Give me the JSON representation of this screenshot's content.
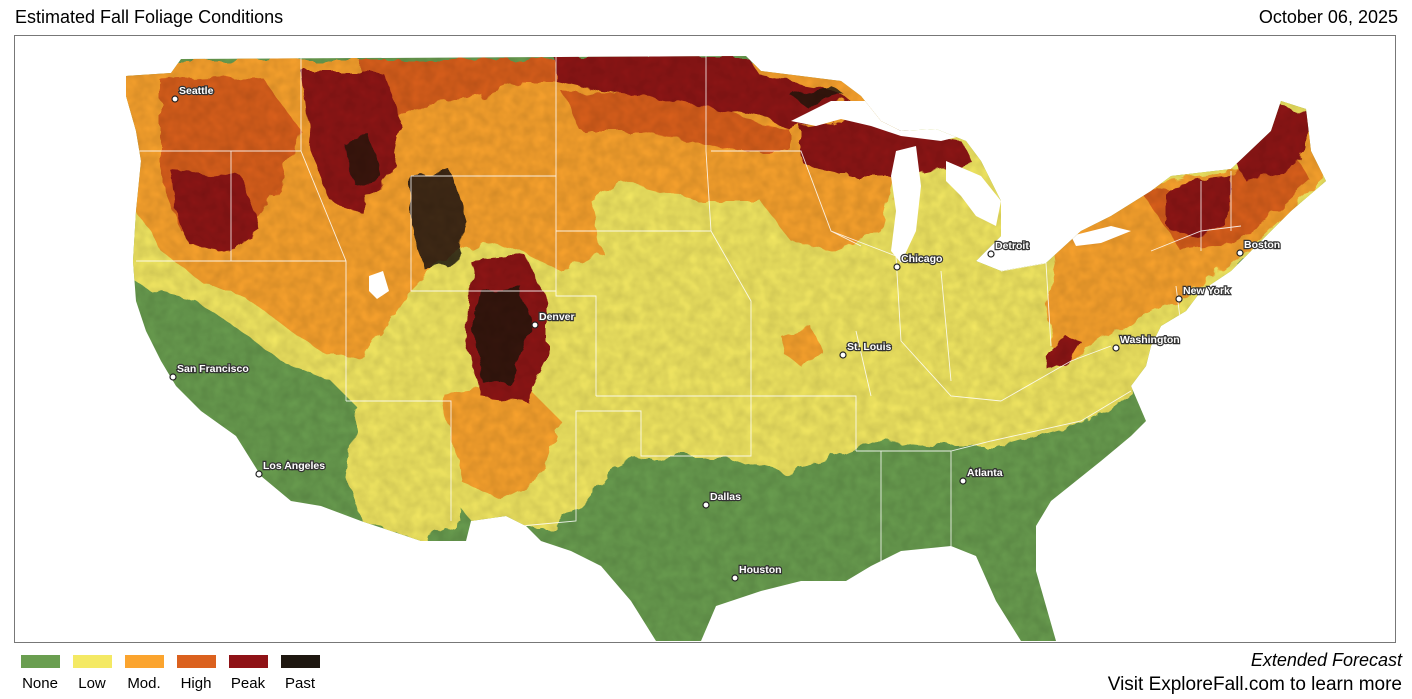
{
  "header": {
    "title": "Estimated Fall Foliage Conditions",
    "date": "October 06, 2025"
  },
  "colors": {
    "none": "#6a9e50",
    "low": "#f4e964",
    "moderate": "#fba42e",
    "high": "#db611e",
    "peak": "#8f1216",
    "past": "#1e1710"
  },
  "legend": [
    {
      "label": "None",
      "color": "#6a9e50"
    },
    {
      "label": "Low",
      "color": "#f4e964"
    },
    {
      "label": "Mod.",
      "color": "#fba42e"
    },
    {
      "label": "High",
      "color": "#db611e"
    },
    {
      "label": "Peak",
      "color": "#8f1216"
    },
    {
      "label": "Past",
      "color": "#1e1710"
    }
  ],
  "cities": [
    {
      "name": "Seattle"
    },
    {
      "name": "San Francisco"
    },
    {
      "name": "Los Angeles"
    },
    {
      "name": "Denver"
    },
    {
      "name": "Dallas"
    },
    {
      "name": "Houston"
    },
    {
      "name": "Chicago"
    },
    {
      "name": "Detroit"
    },
    {
      "name": "St. Louis"
    },
    {
      "name": "Atlanta"
    },
    {
      "name": "Washington"
    },
    {
      "name": "New York"
    },
    {
      "name": "Boston"
    }
  ],
  "footer": {
    "forecast": "Extended Forecast",
    "visit": "Visit ExploreFall.com to learn more"
  }
}
